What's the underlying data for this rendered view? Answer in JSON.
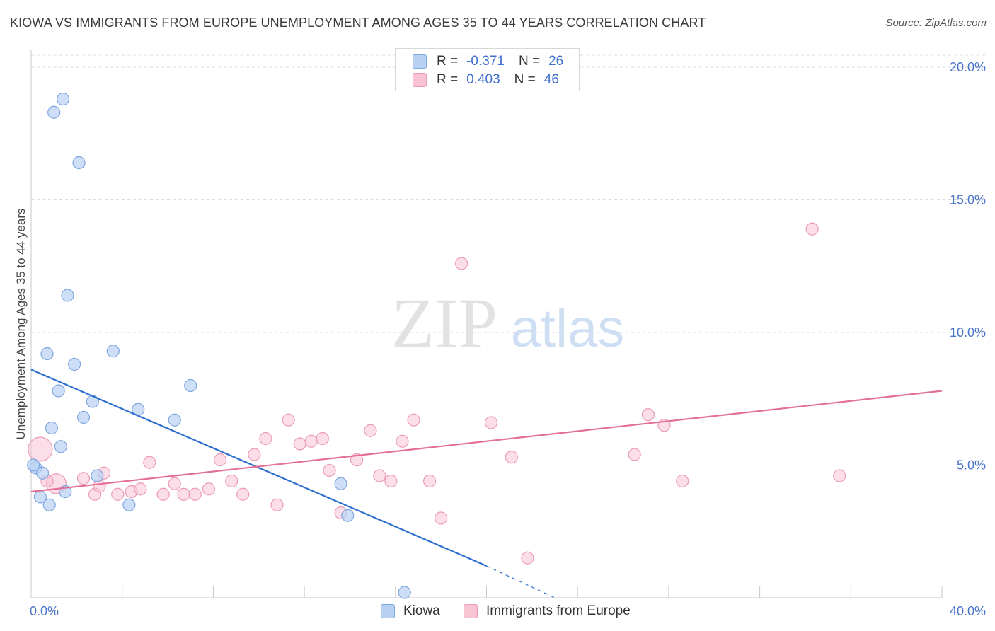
{
  "title": "KIOWA VS IMMIGRANTS FROM EUROPE UNEMPLOYMENT AMONG AGES 35 TO 44 YEARS CORRELATION CHART",
  "source": "Source: ZipAtlas.com",
  "watermark": {
    "zip": "ZIP",
    "atlas": "atlas"
  },
  "legend": {
    "rows": [
      {
        "r_label": "R =",
        "r_value": "-0.371",
        "n_label": "N =",
        "n_value": "26"
      },
      {
        "r_label": "R =",
        "r_value": "0.403",
        "n_label": "N =",
        "n_value": "46"
      }
    ]
  },
  "bottom_legend": {
    "kiowa": "Kiowa",
    "europe": "Immigrants from Europe"
  },
  "colors": {
    "kiowa_fill": "#b8d0f2",
    "kiowa_stroke": "#7ea6e0",
    "kiowa_line": "#2f6fd0",
    "europe_fill": "#f8c3d3",
    "europe_stroke": "#ec9ab5",
    "europe_line": "#e46f96",
    "grid": "#dcdcdc",
    "tick_text": "#4a74c9"
  },
  "chart_data": {
    "type": "scatter",
    "title": "KIOWA VS IMMIGRANTS FROM EUROPE UNEMPLOYMENT AMONG AGES 35 TO 44 YEARS CORRELATION CHART",
    "xlabel": "",
    "ylabel": "Unemployment Among Ages 35 to 44 years",
    "xlim": [
      0,
      40
    ],
    "ylim": [
      0,
      20.5
    ],
    "x_tick_labels": [
      "0.0%",
      "40.0%"
    ],
    "y_ticks": [
      5,
      10,
      15,
      20
    ],
    "y_tick_labels": [
      "5.0%",
      "10.0%",
      "15.0%",
      "20.0%"
    ],
    "series": [
      {
        "name": "Kiowa",
        "R": -0.371,
        "N": 26,
        "points": [
          [
            1.4,
            18.8
          ],
          [
            1.0,
            18.3
          ],
          [
            2.1,
            16.4
          ],
          [
            1.6,
            11.4
          ],
          [
            0.7,
            9.2
          ],
          [
            3.6,
            9.3
          ],
          [
            1.9,
            8.8
          ],
          [
            7.0,
            8.0
          ],
          [
            1.2,
            7.8
          ],
          [
            2.7,
            7.4
          ],
          [
            4.7,
            7.1
          ],
          [
            2.3,
            6.8
          ],
          [
            6.3,
            6.7
          ],
          [
            0.9,
            6.4
          ],
          [
            1.3,
            5.7
          ],
          [
            0.2,
            4.9
          ],
          [
            0.5,
            4.7
          ],
          [
            2.9,
            4.6
          ],
          [
            0.4,
            3.8
          ],
          [
            1.5,
            4.0
          ],
          [
            0.8,
            3.5
          ],
          [
            4.3,
            3.5
          ],
          [
            13.6,
            4.3
          ],
          [
            13.9,
            3.1
          ],
          [
            16.4,
            0.2
          ],
          [
            0.1,
            5.0
          ]
        ],
        "trend": {
          "x0": 0,
          "y0": 8.6,
          "x_solid_end": 20.0,
          "y_solid_end": 1.2,
          "x1": 23.0,
          "y1": 0.0
        }
      },
      {
        "name": "Immigrants from Europe",
        "R": 0.403,
        "N": 46,
        "points": [
          [
            0.4,
            5.6
          ],
          [
            1.1,
            4.3
          ],
          [
            2.3,
            4.5
          ],
          [
            3.2,
            4.7
          ],
          [
            2.8,
            3.9
          ],
          [
            3.8,
            3.9
          ],
          [
            4.4,
            4.0
          ],
          [
            4.8,
            4.1
          ],
          [
            5.2,
            5.1
          ],
          [
            5.8,
            3.9
          ],
          [
            6.3,
            4.3
          ],
          [
            6.7,
            3.9
          ],
          [
            7.2,
            3.9
          ],
          [
            7.8,
            4.1
          ],
          [
            8.3,
            5.2
          ],
          [
            8.8,
            4.4
          ],
          [
            9.3,
            3.9
          ],
          [
            9.8,
            5.4
          ],
          [
            10.3,
            6.0
          ],
          [
            10.8,
            3.5
          ],
          [
            11.3,
            6.7
          ],
          [
            11.8,
            5.8
          ],
          [
            12.3,
            5.9
          ],
          [
            12.8,
            6.0
          ],
          [
            13.1,
            4.8
          ],
          [
            13.6,
            3.2
          ],
          [
            14.3,
            5.2
          ],
          [
            14.9,
            6.3
          ],
          [
            15.3,
            4.6
          ],
          [
            15.8,
            4.4
          ],
          [
            16.3,
            5.9
          ],
          [
            16.8,
            6.7
          ],
          [
            17.5,
            4.4
          ],
          [
            18.0,
            3.0
          ],
          [
            18.9,
            12.6
          ],
          [
            20.2,
            6.6
          ],
          [
            21.1,
            5.3
          ],
          [
            21.8,
            1.5
          ],
          [
            26.5,
            5.4
          ],
          [
            27.1,
            6.9
          ],
          [
            27.8,
            6.5
          ],
          [
            28.6,
            4.4
          ],
          [
            34.3,
            13.9
          ],
          [
            35.5,
            4.6
          ],
          [
            0.7,
            4.4
          ],
          [
            3.0,
            4.2
          ]
        ],
        "trend": {
          "x0": 0,
          "y0": 4.0,
          "x1": 40,
          "y1": 7.8
        }
      }
    ]
  }
}
